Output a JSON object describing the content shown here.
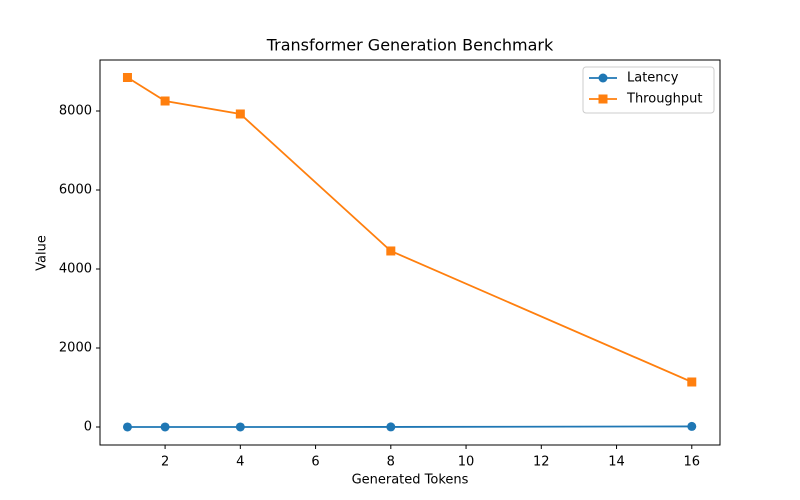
{
  "chart_data": {
    "type": "line",
    "title": "Transformer Generation Benchmark",
    "x_label": "Generated Tokens",
    "y_label": "Value",
    "x": [
      1,
      2,
      4,
      8,
      16
    ],
    "series": [
      {
        "name": "Latency",
        "color": "#1f77b4",
        "marker": "circle",
        "values": [
          0.11,
          0.24,
          0.5,
          1.8,
          14
        ]
      },
      {
        "name": "Throughput",
        "color": "#ff7f0e",
        "marker": "square",
        "values": [
          8848,
          8253,
          7924,
          4456,
          1139
        ]
      }
    ],
    "xlim": [
      0.27,
      16.75
    ],
    "ylim": [
      -456,
      9291
    ],
    "xticks": [
      2,
      4,
      6,
      8,
      10,
      12,
      14,
      16
    ],
    "yticks": [
      0,
      2000,
      4000,
      6000,
      8000
    ],
    "grid": false,
    "legend": "upper-right"
  }
}
